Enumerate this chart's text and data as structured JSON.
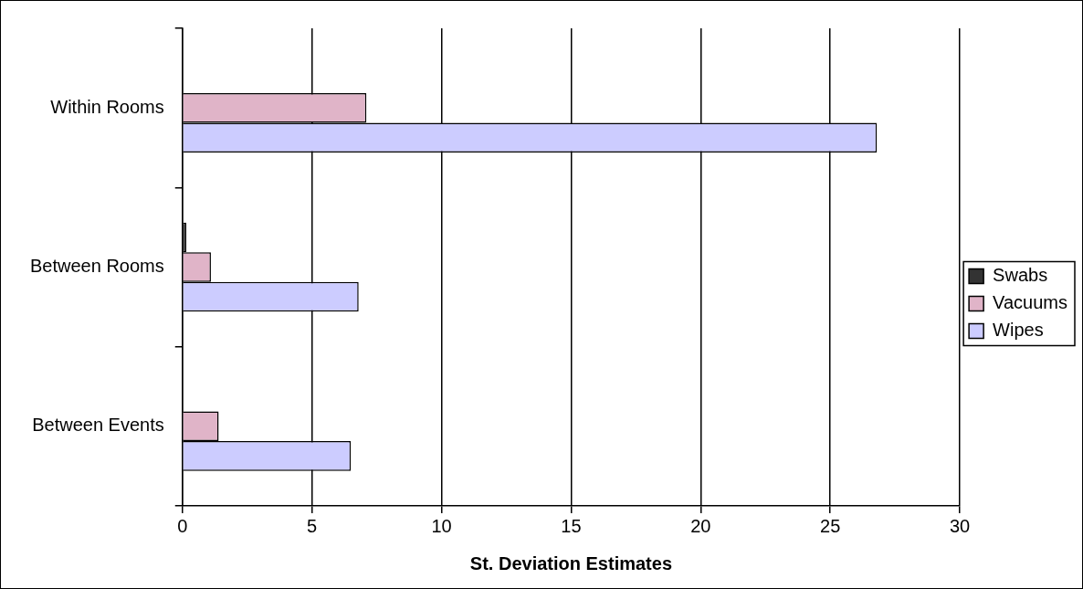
{
  "chart_data": {
    "type": "bar",
    "orientation": "horizontal",
    "xlabel": "St. Deviation Estimates",
    "categories": [
      "Within Rooms",
      "Between Rooms",
      "Between Events"
    ],
    "series": [
      {
        "name": "Swabs",
        "color": "#333333",
        "values": [
          0,
          0.15,
          0
        ]
      },
      {
        "name": "Vacuums",
        "color": "#e0b4c8",
        "values": [
          7.1,
          1.1,
          1.4
        ]
      },
      {
        "name": "Wipes",
        "color": "#ccccff",
        "values": [
          26.8,
          6.8,
          6.5
        ]
      }
    ],
    "xlim": [
      0,
      30
    ],
    "xticks": [
      0,
      5,
      10,
      15,
      20,
      25,
      30
    ],
    "grid": "x",
    "legend": "right"
  }
}
